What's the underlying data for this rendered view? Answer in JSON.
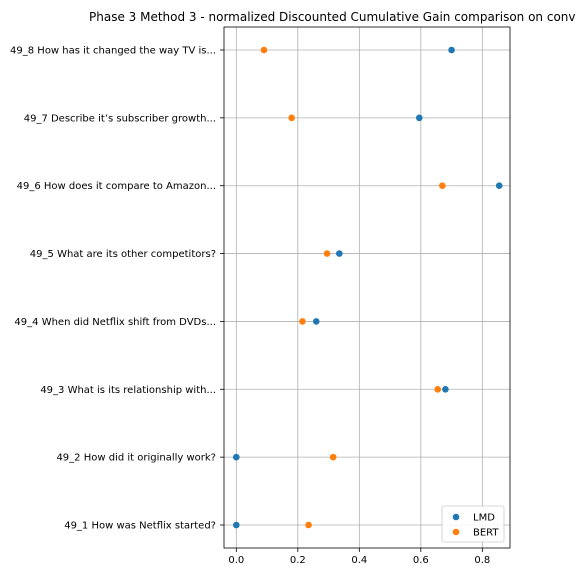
{
  "chart_data": {
    "type": "scatter",
    "title": "Phase 3 Method 3 - normalized Discounted Cumulative Gain comparison on conv",
    "xlabel": "",
    "ylabel": "",
    "xlim": [
      -0.04,
      0.89
    ],
    "xticks": [
      0.0,
      0.2,
      0.4,
      0.6,
      0.8
    ],
    "xtick_labels": [
      "0.0",
      "0.2",
      "0.4",
      "0.6",
      "0.8"
    ],
    "grid": true,
    "legend_position": "lower-right",
    "categories": [
      "49_1 How was Netflix started?",
      "49_2 How did it originally work?",
      "49_3 What is its relationship with...",
      "49_4 When did Netflix shift from DVDs...",
      "49_5 What are its other competitors?",
      "49_6 How does it compare to Amazon...",
      "49_7 Describe it’s subscriber growth...",
      "49_8 How has it changed the way TV is..."
    ],
    "series": [
      {
        "name": "LMD",
        "color": "#1f77b4",
        "values": [
          0.0,
          0.0,
          0.68,
          0.26,
          0.335,
          0.855,
          0.595,
          0.7
        ]
      },
      {
        "name": "BERT",
        "color": "#ff7f0e",
        "values": [
          0.235,
          0.315,
          0.655,
          0.215,
          0.295,
          0.67,
          0.18,
          0.09
        ]
      }
    ]
  }
}
